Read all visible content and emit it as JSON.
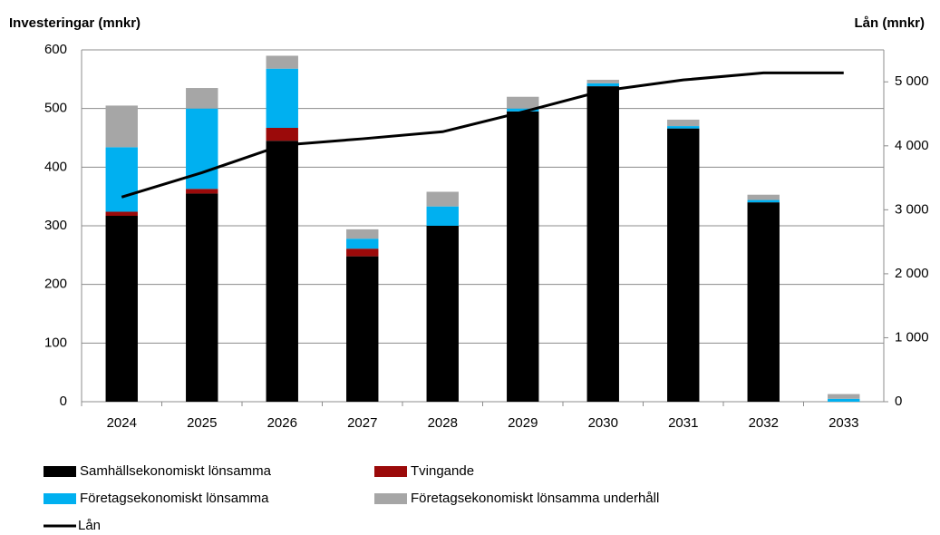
{
  "chart_data": {
    "type": "bar",
    "stacked": true,
    "ylabel": "Investeringar (mnkr)",
    "y2label": "Lån (mnkr)",
    "categories": [
      "2024",
      "2025",
      "2026",
      "2027",
      "2028",
      "2029",
      "2030",
      "2031",
      "2032",
      "2033"
    ],
    "series": [
      {
        "name": "Samhällsekonomiskt lönsamma",
        "color": "#000000",
        "values": [
          317,
          355,
          445,
          248,
          300,
          495,
          538,
          466,
          340,
          0
        ]
      },
      {
        "name": "Tvingande",
        "color": "#9b0a0a",
        "values": [
          7,
          8,
          22,
          13,
          0,
          0,
          0,
          0,
          0,
          0
        ]
      },
      {
        "name": "Företagsekonomiskt lönsamma",
        "color": "#00b0f0",
        "values": [
          110,
          137,
          101,
          17,
          33,
          5,
          5,
          4,
          4,
          5
        ]
      },
      {
        "name": "Företagsekonomiskt lönsamma underhåll",
        "color": "#a6a6a6",
        "values": [
          71,
          35,
          22,
          16,
          25,
          20,
          6,
          11,
          9,
          8
        ]
      },
      {
        "name": "Lån",
        "color": "#000000",
        "type": "line",
        "axis": "y2",
        "values": [
          3200,
          3580,
          4010,
          4110,
          4220,
          4530,
          4860,
          5030,
          5140,
          5140
        ]
      }
    ],
    "ylim": [
      0,
      600
    ],
    "yticks": [
      0,
      100,
      200,
      300,
      400,
      500,
      600
    ],
    "y2lim": [
      0,
      5500
    ],
    "y2ticks": [
      0,
      {
        "value": 1000,
        "label": "1 000"
      },
      {
        "value": 2000,
        "label": "2 000"
      },
      {
        "value": 3000,
        "label": "3 000"
      },
      {
        "value": 4000,
        "label": "4 000"
      },
      {
        "value": 5000,
        "label": "5 000"
      }
    ],
    "grid": true
  }
}
